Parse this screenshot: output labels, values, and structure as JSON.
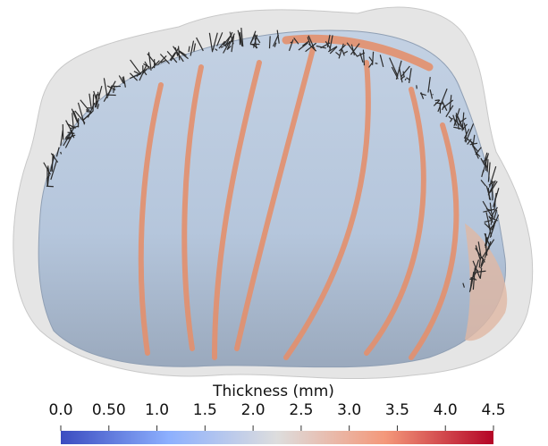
{
  "chart_data": {
    "type": "colorbar",
    "title": "Thickness (mm)",
    "xlim": [
      0,
      4.5
    ],
    "xticks": [
      {
        "value": 0,
        "label": "0.0"
      },
      {
        "value": 0.5,
        "label": "0.50"
      },
      {
        "value": 1,
        "label": "1.0"
      },
      1.5,
      {
        "value": 2,
        "label": "2.0"
      },
      2.5,
      {
        "value": 3,
        "label": "3.0"
      },
      3.5,
      {
        "value": 4,
        "label": "4.0"
      },
      4.5
    ],
    "colormap": [
      "#3b4cc0",
      "#8db0fe",
      "#dddddd",
      "#f4987a",
      "#b40426"
    ]
  }
}
